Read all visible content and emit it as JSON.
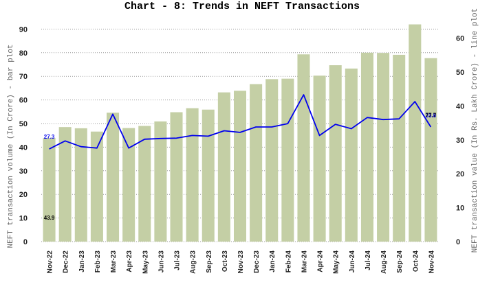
{
  "chart_data": {
    "type": "bar",
    "title": "Chart - 8: Trends in NEFT Transactions",
    "ylabel": "NEFT transaction volume (In Crore) - bar plot",
    "y2label": "NEFT transaction value (In Rs. Lakh Crore) - line plot",
    "ylim": [
      0,
      93
    ],
    "y2lim": [
      0,
      67
    ],
    "yticks": [
      0,
      10,
      20,
      30,
      40,
      50,
      60,
      70,
      80,
      90
    ],
    "y2ticks": [
      0,
      10,
      20,
      30,
      40,
      50,
      60
    ],
    "grid": true,
    "categories": [
      "Nov-22",
      "Dec-22",
      "Jan-23",
      "Feb-23",
      "Mar-23",
      "Apr-23",
      "May-23",
      "Jun-23",
      "Jul-23",
      "Aug-23",
      "Sep-23",
      "Oct-23",
      "Nov-23",
      "Dec-23",
      "Jan-24",
      "Feb-24",
      "Mar-24",
      "Apr-24",
      "May-24",
      "Jun-24",
      "Jul-24",
      "Aug-24",
      "Sep-24",
      "Oct-24",
      "Nov-24"
    ],
    "series": [
      {
        "type": "bar",
        "axis": "left",
        "color": "#c4cfa5",
        "values": [
          43.9,
          48.5,
          48.0,
          46.6,
          54.6,
          48.1,
          49.0,
          50.9,
          54.8,
          56.5,
          55.9,
          63.2,
          63.9,
          66.7,
          68.8,
          69.0,
          79.3,
          70.3,
          74.7,
          73.3,
          80.0,
          79.9,
          79.1,
          92.0,
          77.7
        ]
      },
      {
        "type": "line",
        "axis": "right",
        "color": "#0000ee",
        "values": [
          27.3,
          29.7,
          28.0,
          27.6,
          37.6,
          27.6,
          30.2,
          30.4,
          30.5,
          31.3,
          31.1,
          32.7,
          32.2,
          33.8,
          33.8,
          34.8,
          43.3,
          31.3,
          34.6,
          33.3,
          36.6,
          36.0,
          36.2,
          41.3,
          33.8
        ]
      }
    ],
    "data_labels": {
      "line_first": "27.3",
      "bar_first": "43.9",
      "line_last": "33.8",
      "bar_last": "77.7"
    }
  }
}
